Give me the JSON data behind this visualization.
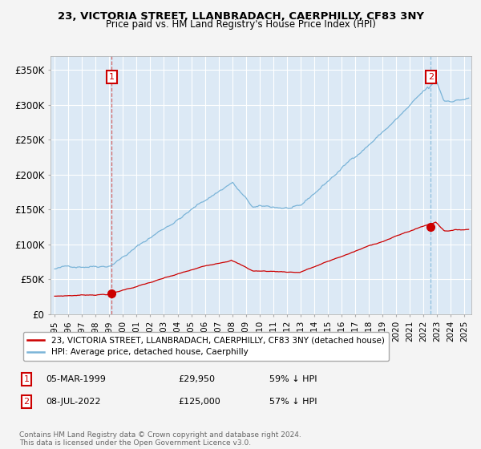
{
  "title": "23, VICTORIA STREET, LLANBRADACH, CAERPHILLY, CF83 3NY",
  "subtitle": "Price paid vs. HM Land Registry's House Price Index (HPI)",
  "fig_facecolor": "#f4f4f4",
  "plot_bg_color": "#dce9f5",
  "grid_color": "#ffffff",
  "hpi_color": "#7ab4d8",
  "price_color": "#cc0000",
  "sale1_date_year": 1999.18,
  "sale1_price": 29950,
  "sale2_date_year": 2022.52,
  "sale2_price": 125000,
  "ylim": [
    0,
    370000
  ],
  "xlim_start": 1994.7,
  "xlim_end": 2025.5,
  "yticks": [
    0,
    50000,
    100000,
    150000,
    200000,
    250000,
    300000,
    350000
  ],
  "ytick_labels": [
    "£0",
    "£50K",
    "£100K",
    "£150K",
    "£200K",
    "£250K",
    "£300K",
    "£350K"
  ],
  "xticks": [
    1995,
    1996,
    1997,
    1998,
    1999,
    2000,
    2001,
    2002,
    2003,
    2004,
    2005,
    2006,
    2007,
    2008,
    2009,
    2010,
    2011,
    2012,
    2013,
    2014,
    2015,
    2016,
    2017,
    2018,
    2019,
    2020,
    2021,
    2022,
    2023,
    2024,
    2025
  ],
  "legend_line1": "23, VICTORIA STREET, LLANBRADACH, CAERPHILLY, CF83 3NY (detached house)",
  "legend_line2": "HPI: Average price, detached house, Caerphilly",
  "note1_label": "1",
  "note1_date": "05-MAR-1999",
  "note1_price": "£29,950",
  "note1_hpi": "59% ↓ HPI",
  "note2_label": "2",
  "note2_date": "08-JUL-2022",
  "note2_price": "£125,000",
  "note2_hpi": "57% ↓ HPI",
  "footer": "Contains HM Land Registry data © Crown copyright and database right 2024.\nThis data is licensed under the Open Government Licence v3.0."
}
